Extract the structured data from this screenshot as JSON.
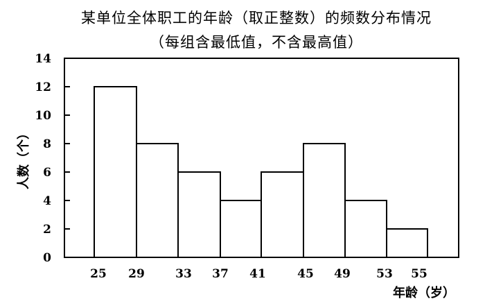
{
  "chart_data": {
    "type": "bar",
    "title": "某单位全体职工的年龄（取正整数）的频数分布情况",
    "subtitle": "（每组含最低值，不含最高值）",
    "xlabel": "年龄（岁）",
    "ylabel": "人数（个）",
    "ylim": [
      0,
      14
    ],
    "yticks": [
      "0",
      "2",
      "4",
      "6",
      "8",
      "10",
      "12",
      "14"
    ],
    "xticks": [
      "25",
      "29",
      "33",
      "37",
      "41",
      "45",
      "49",
      "53",
      "55"
    ],
    "bins": [
      {
        "from": 25,
        "to": 29,
        "value": 12
      },
      {
        "from": 29,
        "to": 33,
        "value": 8
      },
      {
        "from": 33,
        "to": 37,
        "value": 6
      },
      {
        "from": 37,
        "to": 41,
        "value": 4
      },
      {
        "from": 41,
        "to": 45,
        "value": 6
      },
      {
        "from": 45,
        "to": 49,
        "value": 8
      },
      {
        "from": 49,
        "to": 53,
        "value": 4
      },
      {
        "from": 53,
        "to": 55,
        "value": 2
      }
    ],
    "grid": false
  }
}
